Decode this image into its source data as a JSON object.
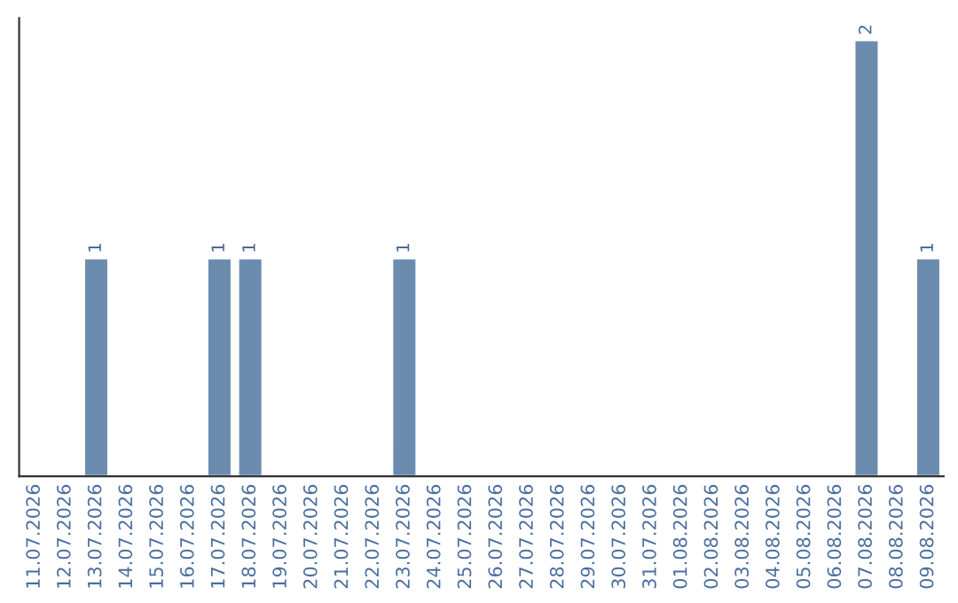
{
  "chart_data": {
    "type": "bar",
    "categories": [
      "11.07.2026",
      "12.07.2026",
      "13.07.2026",
      "14.07.2026",
      "15.07.2026",
      "16.07.2026",
      "17.07.2026",
      "18.07.2026",
      "19.07.2026",
      "20.07.2026",
      "21.07.2026",
      "22.07.2026",
      "23.07.2026",
      "24.07.2026",
      "25.07.2026",
      "26.07.2026",
      "27.07.2026",
      "28.07.2026",
      "29.07.2026",
      "30.07.2026",
      "31.07.2026",
      "01.08.2026",
      "02.08.2026",
      "03.08.2026",
      "04.08.2026",
      "05.08.2026",
      "06.08.2026",
      "07.08.2026",
      "08.08.2026",
      "09.08.2026"
    ],
    "values": [
      0,
      0,
      1,
      0,
      0,
      0,
      1,
      1,
      0,
      0,
      0,
      0,
      1,
      0,
      0,
      0,
      0,
      0,
      0,
      0,
      0,
      0,
      0,
      0,
      0,
      0,
      0,
      2,
      0,
      1
    ],
    "value_labels": [
      null,
      null,
      "1",
      null,
      null,
      null,
      "1",
      "1",
      null,
      null,
      null,
      null,
      "1",
      null,
      null,
      null,
      null,
      null,
      null,
      null,
      null,
      null,
      null,
      null,
      null,
      null,
      null,
      "2",
      null,
      "1"
    ],
    "color": "#6b8cae",
    "tick_labels": "x",
    "grid": false
  }
}
